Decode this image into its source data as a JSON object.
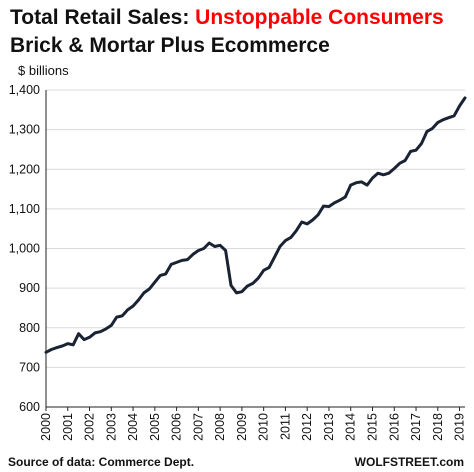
{
  "title": {
    "prefix": "Total Retail Sales: ",
    "accent": "Unstoppable Consumers",
    "subtitle": "Brick & Mortar Plus Ecommerce"
  },
  "colors": {
    "accent": "#ff0000",
    "line": "#1a2333",
    "grid": "#d9d9d9",
    "axis": "#222222"
  },
  "footer": {
    "source": "Source of data: Commerce Dept.",
    "brand": "WOLFSTREET.com"
  },
  "chart_data": {
    "type": "line",
    "title": "Total Retail Sales: Unstoppable Consumers",
    "subtitle": "Brick & Mortar Plus Ecommerce",
    "ylabel": "$ billions",
    "xlabel": "",
    "ylim": [
      600,
      1400
    ],
    "yticks": [
      600,
      700,
      800,
      900,
      1000,
      1100,
      1200,
      1300,
      1400
    ],
    "ytick_labels": [
      "600",
      "700",
      "800",
      "900",
      "1,000",
      "1,100",
      "1,200",
      "1,300",
      "1,400"
    ],
    "xlim": [
      2000,
      2019.25
    ],
    "xticks": [
      2000,
      2001,
      2002,
      2003,
      2004,
      2005,
      2006,
      2007,
      2008,
      2009,
      2010,
      2011,
      2012,
      2013,
      2014,
      2015,
      2016,
      2017,
      2018,
      2019
    ],
    "grid": true,
    "legend": "none",
    "series": [
      {
        "x": [
          "2000 Q1",
          "2000 Q2",
          "2000 Q3",
          "2000 Q4",
          "2001 Q1",
          "2001 Q2",
          "2001 Q3",
          "2001 Q4",
          "2002 Q1",
          "2002 Q2",
          "2002 Q3",
          "2002 Q4",
          "2003 Q1",
          "2003 Q2",
          "2003 Q3",
          "2003 Q4",
          "2004 Q1",
          "2004 Q2",
          "2004 Q3",
          "2004 Q4",
          "2005 Q1",
          "2005 Q2",
          "2005 Q3",
          "2005 Q4",
          "2006 Q1",
          "2006 Q2",
          "2006 Q3",
          "2006 Q4",
          "2007 Q1",
          "2007 Q2",
          "2007 Q3",
          "2007 Q4",
          "2008 Q1",
          "2008 Q2",
          "2008 Q3",
          "2008 Q4",
          "2009 Q1",
          "2009 Q2",
          "2009 Q3",
          "2009 Q4",
          "2010 Q1",
          "2010 Q2",
          "2010 Q3",
          "2010 Q4",
          "2011 Q1",
          "2011 Q2",
          "2011 Q3",
          "2011 Q4",
          "2012 Q1",
          "2012 Q2",
          "2012 Q3",
          "2012 Q4",
          "2013 Q1",
          "2013 Q2",
          "2013 Q3",
          "2013 Q4",
          "2014 Q1",
          "2014 Q2",
          "2014 Q3",
          "2014 Q4",
          "2015 Q1",
          "2015 Q2",
          "2015 Q3",
          "2015 Q4",
          "2016 Q1",
          "2016 Q2",
          "2016 Q3",
          "2016 Q4",
          "2017 Q1",
          "2017 Q2",
          "2017 Q3",
          "2017 Q4",
          "2018 Q1",
          "2018 Q2",
          "2018 Q3",
          "2018 Q4",
          "2019 Q1",
          "2019 Q2"
        ],
        "values": [
          738,
          745,
          750,
          754,
          760,
          757,
          785,
          770,
          776,
          787,
          790,
          797,
          806,
          827,
          830,
          845,
          855,
          870,
          888,
          898,
          915,
          932,
          936,
          960,
          965,
          970,
          972,
          985,
          995,
          1000,
          1014,
          1005,
          1008,
          995,
          907,
          888,
          891,
          905,
          912,
          925,
          945,
          952,
          978,
          1005,
          1020,
          1028,
          1045,
          1067,
          1062,
          1072,
          1085,
          1107,
          1106,
          1115,
          1122,
          1130,
          1160,
          1166,
          1168,
          1160,
          1178,
          1190,
          1186,
          1190,
          1202,
          1215,
          1222,
          1245,
          1248,
          1265,
          1295,
          1303,
          1318,
          1325,
          1330,
          1335,
          1360,
          1380
        ]
      }
    ]
  }
}
